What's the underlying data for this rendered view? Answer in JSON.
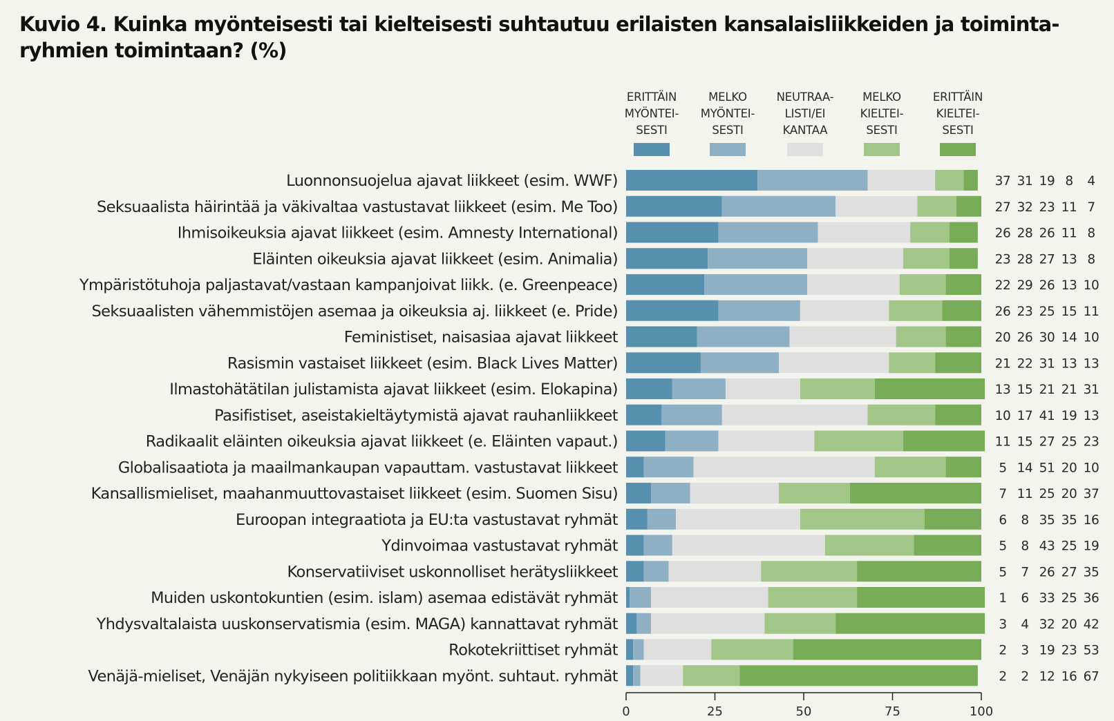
{
  "title": "Kuvio 4. Kuinka myönteisesti tai kielteisesti suhtautuu erilaisten kansalaisliikkeiden ja toiminta-ryhmien toimintaan? (%)",
  "title_lines": [
    "Kuvio 4. Kuinka myönteisesti tai kielteisesti suhtautuu erilaisten kansalaisliikkeiden ja toiminta-",
    "ryhmien toimintaan? (%)"
  ],
  "chart_data": {
    "type": "bar",
    "orientation": "horizontal",
    "stacked": true,
    "title": "Kuvio 4. Kuinka myönteisesti tai kielteisesti suhtautuu erilaisten kansalaisliikkeiden ja toiminta-ryhmien toimintaan? (%)",
    "xlabel": "",
    "ylabel": "",
    "xlim": [
      0,
      100
    ],
    "xticks": [
      0,
      25,
      50,
      75,
      100
    ],
    "grid": false,
    "legend_position": "top",
    "categories": [
      "Luonnonsuojelua ajavat liikkeet (esim. WWF)",
      "Seksuaalista häirintää ja väkivaltaa vastustavat liikkeet (esim. Me Too)",
      "Ihmisoikeuksia ajavat liikkeet (esim. Amnesty International)",
      "Eläinten oikeuksia ajavat liikkeet (esim. Animalia)",
      "Ympäristötuhoja paljastavat/vastaan kampanjoivat liikk. (e. Greenpeace)",
      "Seksuaalisten vähemmistöjen asemaa ja oikeuksia aj. liikkeet (e. Pride)",
      "Feministiset, naisasiaa ajavat liikkeet",
      "Rasismin vastaiset liikkeet (esim. Black Lives Matter)",
      "Ilmastohätätilan julistamista ajavat liikkeet (esim. Elokapina)",
      "Pasifistiset, aseistakieltäytymistä ajavat rauhanliikkeet",
      "Radikaalit eläinten oikeuksia ajavat liikkeet (e. Eläinten vapaut.)",
      "Globalisaatiota ja maailmankaupan vapauttam. vastustavat liikkeet",
      "Kansallismieliset, maahanmuuttovastaiset liikkeet (esim. Suomen Sisu)",
      "Euroopan integraatiota ja EU:ta vastustavat ryhmät",
      "Ydinvoimaa vastustavat ryhmät",
      "Konservatiiviset uskonnolliset herätysliikkeet",
      "Muiden uskontokuntien (esim. islam) asemaa edistävät ryhmät",
      "Yhdysvaltalaista uuskonservatismia (esim. MAGA) kannattavat ryhmät",
      "Rokotekriittiset ryhmät",
      "Venäjä-mieliset, Venäjän nykyiseen politiikkaan myönt. suhtaut. ryhmät"
    ],
    "series": [
      {
        "name": "ERITTÄIN MYÖNTEISESTI",
        "legend_lines": [
          "ERITTÄIN",
          "MYÖNTEI-",
          "SESTI"
        ],
        "color": "#5790ae",
        "values": [
          37,
          27,
          26,
          23,
          22,
          26,
          20,
          21,
          13,
          10,
          11,
          5,
          7,
          6,
          5,
          5,
          1,
          3,
          2,
          2
        ]
      },
      {
        "name": "MELKO MYÖNTEISESTI",
        "legend_lines": [
          "MELKO",
          "MYÖNTEI-",
          "SESTI"
        ],
        "color": "#8fb0c4",
        "values": [
          31,
          32,
          28,
          28,
          29,
          23,
          26,
          22,
          15,
          17,
          15,
          14,
          11,
          8,
          8,
          7,
          6,
          4,
          3,
          2
        ]
      },
      {
        "name": "NEUTRAALISTI/EI KANTAA",
        "legend_lines": [
          "NEUTRAA-",
          "LISTI/EI",
          "KANTAA"
        ],
        "color": "#dfdfdf",
        "values": [
          19,
          23,
          26,
          27,
          26,
          25,
          30,
          31,
          21,
          41,
          27,
          51,
          25,
          35,
          43,
          26,
          33,
          32,
          19,
          12
        ]
      },
      {
        "name": "MELKO KIELTEISESTI",
        "legend_lines": [
          "MELKO",
          "KIELTEI-",
          "SESTI"
        ],
        "color": "#a2c588",
        "values": [
          8,
          11,
          11,
          13,
          13,
          15,
          14,
          13,
          21,
          19,
          25,
          20,
          20,
          35,
          25,
          27,
          25,
          20,
          23,
          16
        ]
      },
      {
        "name": "ERITTÄIN KIELTEISESTI",
        "legend_lines": [
          "ERITTÄIN",
          "KIELTEI-",
          "SESTI"
        ],
        "color": "#79ac58",
        "values": [
          4,
          7,
          8,
          8,
          10,
          11,
          10,
          13,
          31,
          13,
          23,
          10,
          37,
          16,
          19,
          35,
          36,
          42,
          53,
          67
        ]
      }
    ]
  }
}
